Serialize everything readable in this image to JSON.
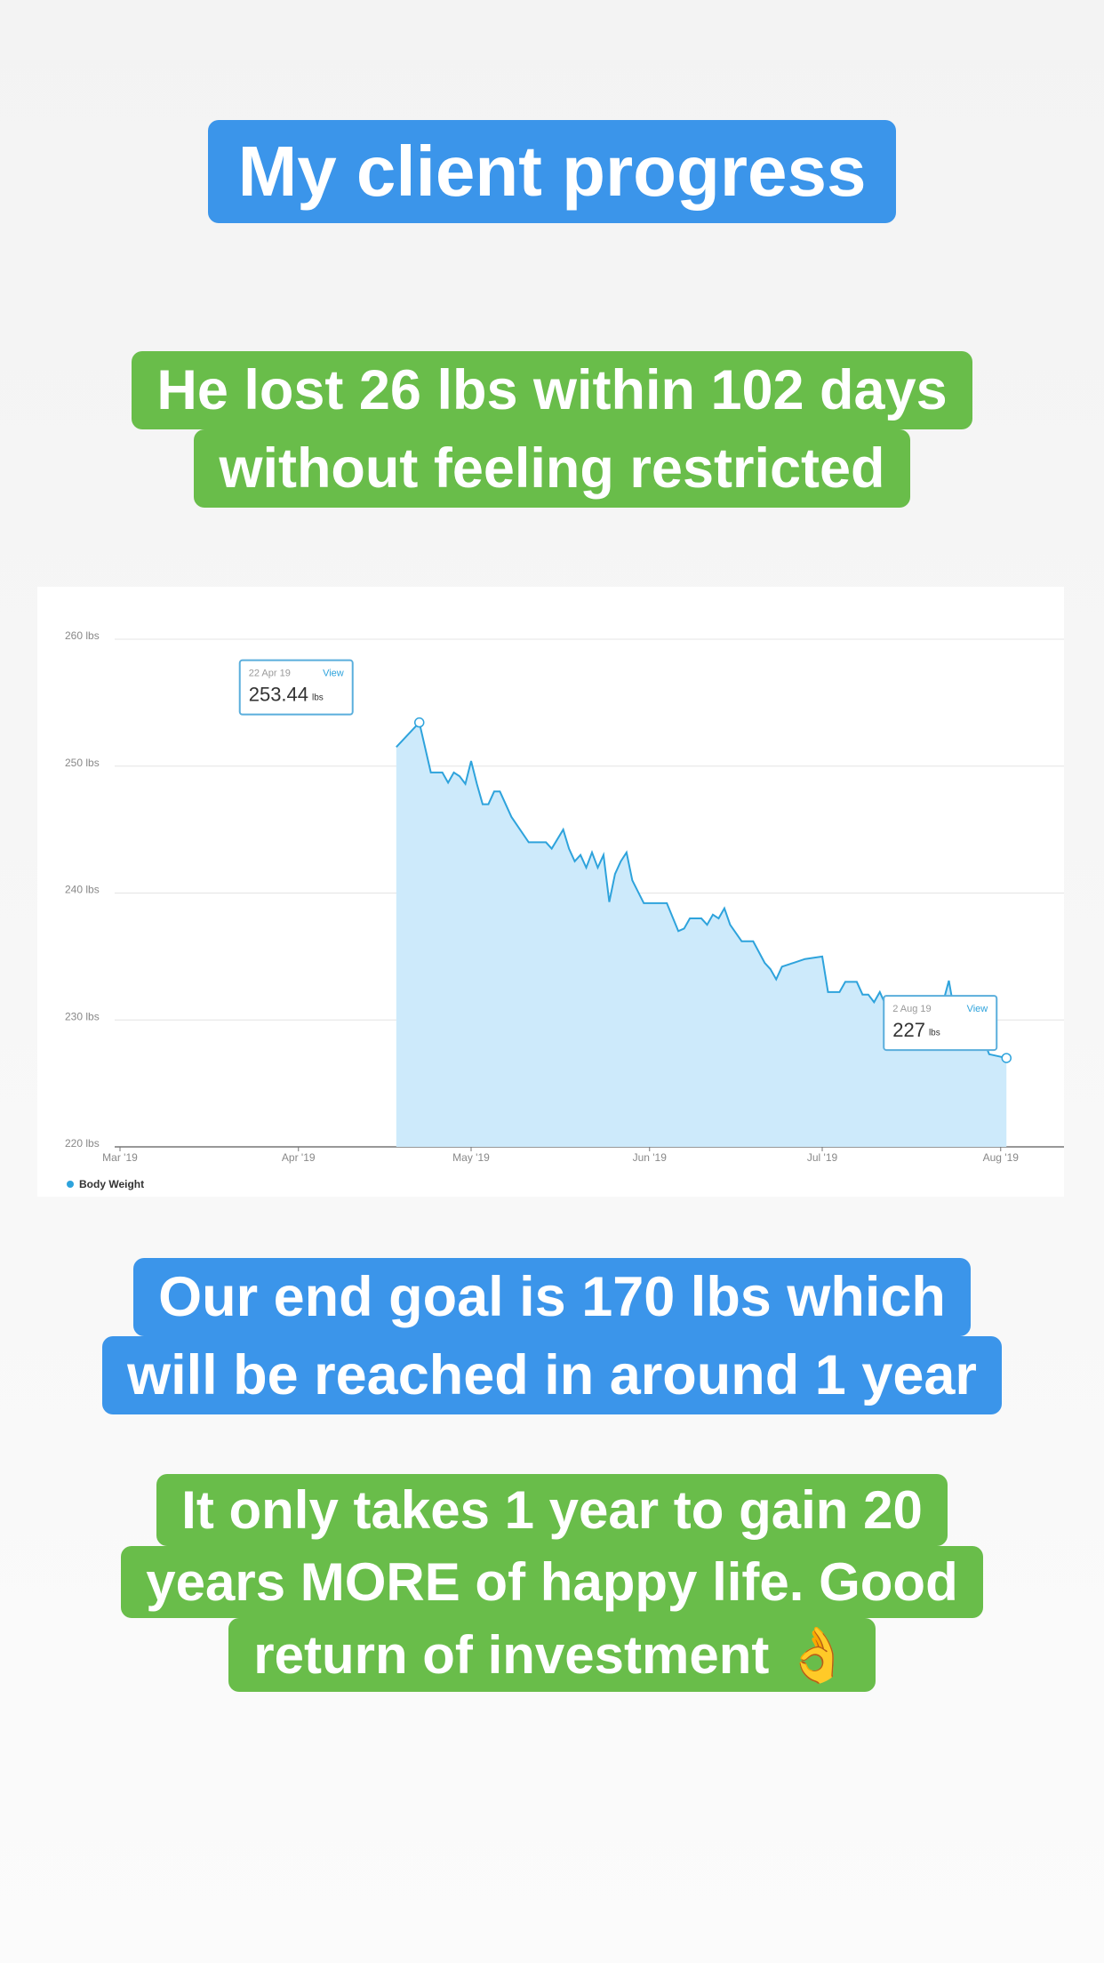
{
  "captions": [
    {
      "lines": [
        "My client progress"
      ],
      "color": "#3b95ea"
    },
    {
      "lines": [
        "He lost 26 lbs within 102 days",
        "without feeling restricted"
      ],
      "color": "#69bd4a"
    },
    {
      "lines": [
        "Our end goal is 170 lbs which",
        "will be reached in around 1 year"
      ],
      "color": "#3b95ea"
    },
    {
      "lines": [
        "It only takes 1 year to gain 20",
        "years MORE of happy life. Good",
        "return of investment 👌"
      ],
      "color": "#69bd4a"
    }
  ],
  "chart_data": {
    "type": "area",
    "x": [
      "2019-04-18",
      "2019-04-22",
      "2019-04-24",
      "2019-04-26",
      "2019-04-27",
      "2019-04-28",
      "2019-04-29",
      "2019-04-30",
      "2019-05-01",
      "2019-05-02",
      "2019-05-03",
      "2019-05-04",
      "2019-05-05",
      "2019-05-06",
      "2019-05-08",
      "2019-05-11",
      "2019-05-14",
      "2019-05-15",
      "2019-05-17",
      "2019-05-18",
      "2019-05-19",
      "2019-05-20",
      "2019-05-21",
      "2019-05-22",
      "2019-05-23",
      "2019-05-24",
      "2019-05-25",
      "2019-05-26",
      "2019-05-27",
      "2019-05-28",
      "2019-05-29",
      "2019-05-31",
      "2019-06-01",
      "2019-06-04",
      "2019-06-06",
      "2019-06-07",
      "2019-06-08",
      "2019-06-10",
      "2019-06-11",
      "2019-06-12",
      "2019-06-13",
      "2019-06-14",
      "2019-06-15",
      "2019-06-17",
      "2019-06-19",
      "2019-06-21",
      "2019-06-22",
      "2019-06-23",
      "2019-06-24",
      "2019-06-26",
      "2019-06-28",
      "2019-07-01",
      "2019-07-02",
      "2019-07-04",
      "2019-07-05",
      "2019-07-07",
      "2019-07-08",
      "2019-07-09",
      "2019-07-10",
      "2019-07-11",
      "2019-07-12",
      "2019-07-13",
      "2019-07-14",
      "2019-07-16",
      "2019-07-17",
      "2019-07-18",
      "2019-07-20",
      "2019-07-22",
      "2019-07-23",
      "2019-07-24",
      "2019-07-26",
      "2019-07-28",
      "2019-07-30",
      "2019-08-02"
    ],
    "series": [
      {
        "name": "Body Weight",
        "color": "#2ea3dc",
        "fill": "#cdeafb",
        "values": [
          251.5,
          253.44,
          249.5,
          249.5,
          248.7,
          249.5,
          249.2,
          248.6,
          250.4,
          248.6,
          247,
          247,
          248,
          248,
          246,
          244,
          244,
          243.5,
          245,
          243.5,
          242.5,
          243,
          242,
          243.2,
          242,
          243,
          239.3,
          241.5,
          242.5,
          243.2,
          241,
          239.2,
          239.2,
          239.2,
          237,
          237.2,
          238,
          238,
          237.5,
          238.3,
          238,
          238.8,
          237.5,
          236.2,
          236.2,
          234.5,
          234,
          233.2,
          234.2,
          234.5,
          234.8,
          235,
          232.2,
          232.2,
          233,
          233,
          232,
          232,
          231.4,
          232.2,
          231.2,
          230.8,
          231.4,
          230.6,
          231.8,
          231,
          231.6,
          231.4,
          233.1,
          230.5,
          230.5,
          229.6,
          227.3,
          227
        ]
      }
    ],
    "xlim": [
      "2019-03-01",
      "2019-08-12"
    ],
    "xticks": [
      {
        "value": "2019-03-01",
        "label": "Mar '19"
      },
      {
        "value": "2019-04-01",
        "label": "Apr '19"
      },
      {
        "value": "2019-05-01",
        "label": "May '19"
      },
      {
        "value": "2019-06-01",
        "label": "Jun '19"
      },
      {
        "value": "2019-07-01",
        "label": "Jul '19"
      },
      {
        "value": "2019-08-01",
        "label": "Aug '19"
      }
    ],
    "ylim": [
      220,
      260
    ],
    "yticks": [
      {
        "value": 220,
        "label": "220 lbs"
      },
      {
        "value": 230,
        "label": "230 lbs"
      },
      {
        "value": 240,
        "label": "240 lbs"
      },
      {
        "value": 250,
        "label": "250 lbs"
      },
      {
        "value": 260,
        "label": "260 lbs"
      }
    ],
    "grid": true,
    "tooltips": [
      {
        "date": "22 Apr 19",
        "link": "View",
        "unit": "lbs"
      },
      {
        "date": "2 Aug 19",
        "link": "View",
        "unit": "lbs"
      }
    ]
  }
}
